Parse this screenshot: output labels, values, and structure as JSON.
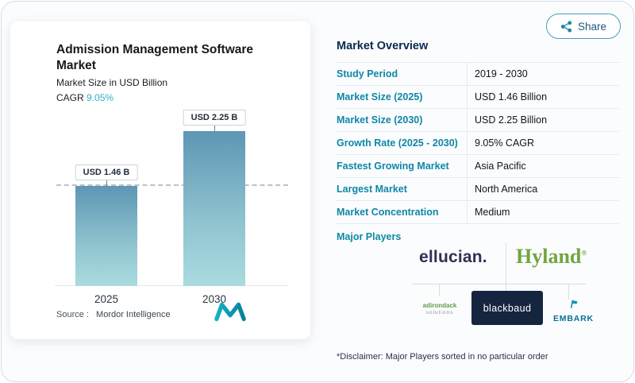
{
  "share": {
    "label": "Share"
  },
  "card": {
    "title": "Admission Management Software Market",
    "subtitle": "Market Size in USD Billion",
    "cagr_label": "CAGR",
    "cagr_value": "9.05%",
    "source_label": "Source :",
    "source_value": "Mordor Intelligence"
  },
  "chart_data": {
    "type": "bar",
    "title": "Admission Management Software Market",
    "ylabel": "Market Size in USD Billion",
    "categories": [
      "2025",
      "2030"
    ],
    "values": [
      1.46,
      2.25
    ],
    "bar_labels": [
      "USD 1.46 B",
      "USD 2.25 B"
    ],
    "ylim": [
      0,
      2.6
    ],
    "reference_line": 1.46,
    "cagr": "9.05%",
    "grid": false,
    "legend": false
  },
  "overview": {
    "title": "Market Overview",
    "rows": [
      {
        "label": "Study Period",
        "value": "2019 - 2030"
      },
      {
        "label": "Market Size (2025)",
        "value": "USD 1.46 Billion"
      },
      {
        "label": "Market Size (2030)",
        "value": "USD 2.25 Billion"
      },
      {
        "label": "Growth Rate (2025 - 2030)",
        "value": "9.05% CAGR"
      },
      {
        "label": "Fastest Growing Market",
        "value": "Asia Pacific"
      },
      {
        "label": "Largest Market",
        "value": "North America"
      },
      {
        "label": "Market Concentration",
        "value": "Medium"
      }
    ],
    "major_players_label": "Major Players",
    "players": {
      "ellucian": "ellucian.",
      "hyland": "Hyland",
      "hyland_mark": "®",
      "adirondack_line1": "adirondack",
      "adirondack_line2": "solutions",
      "blackbaud": "blackbaud",
      "embark": "EMBARK"
    },
    "disclaimer": "*Disclaimer: Major Players sorted in no particular order"
  },
  "colors": {
    "accent_teal": "#0f87a6",
    "heading_navy": "#0b2b4c",
    "bar_gradient_top": "#5e96b4",
    "bar_gradient_bottom": "#a9dbdf",
    "hyland_green": "#72a53f",
    "blackbaud_navy": "#15253f"
  }
}
